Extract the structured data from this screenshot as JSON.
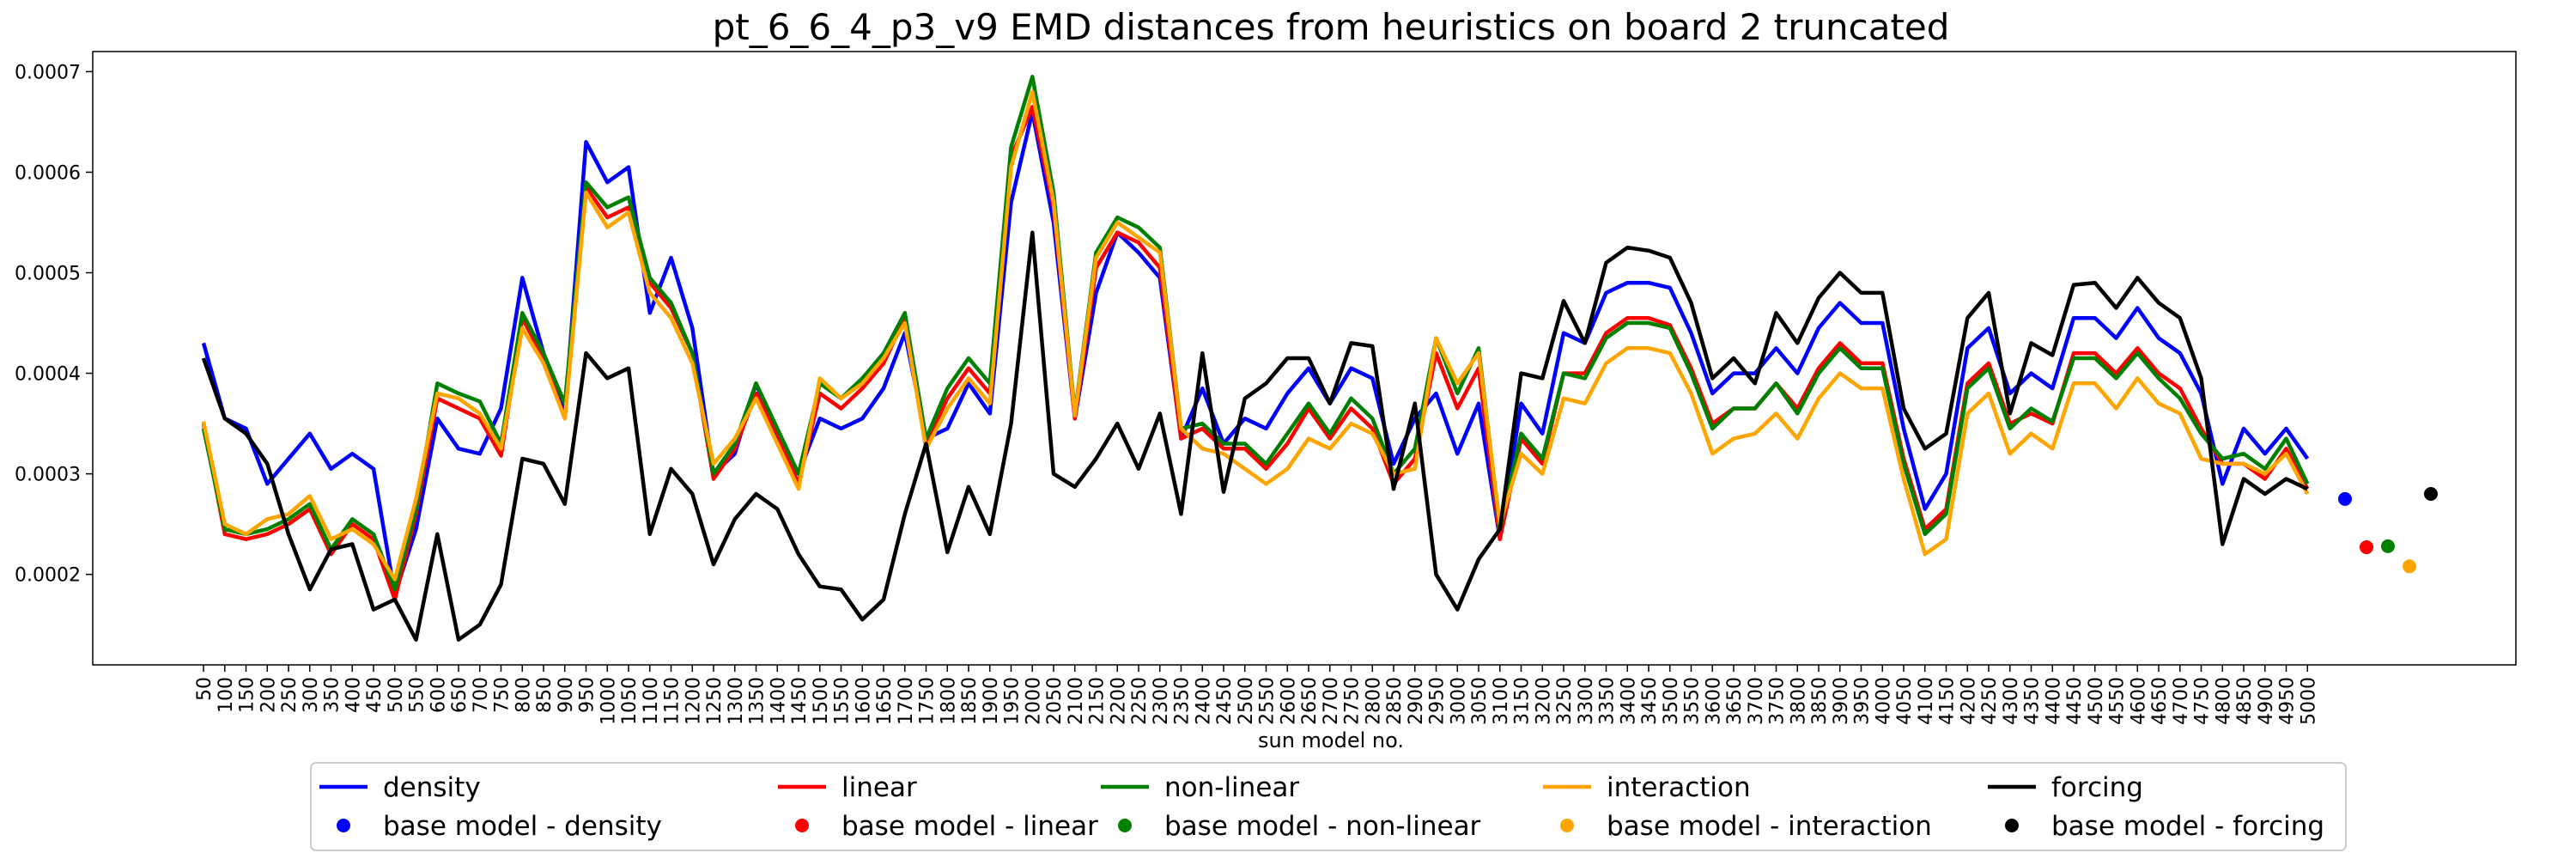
{
  "chart_data": {
    "type": "line",
    "title": "pt_6_6_4_p3_v9 EMD distances from heuristics on board 2 truncated",
    "xlabel": "sun model no.",
    "ylabel": "",
    "ylim": [
      0.00011,
      0.00072
    ],
    "yticks": [
      0.0002,
      0.0003,
      0.0004,
      0.0005,
      0.0006,
      0.0007
    ],
    "ytick_labels": [
      "0.0002",
      "0.0003",
      "0.0004",
      "0.0005",
      "0.0006",
      "0.0007"
    ],
    "x": [
      "50",
      "100",
      "150",
      "200",
      "250",
      "300",
      "350",
      "400",
      "450",
      "500",
      "550",
      "600",
      "650",
      "700",
      "750",
      "800",
      "850",
      "900",
      "950",
      "1000",
      "1050",
      "1100",
      "1150",
      "1200",
      "1250",
      "1300",
      "1350",
      "1400",
      "1450",
      "1500",
      "1550",
      "1600",
      "1650",
      "1700",
      "1750",
      "1800",
      "1850",
      "1900",
      "1950",
      "2000",
      "2050",
      "2100",
      "2150",
      "2200",
      "2250",
      "2300",
      "2350",
      "2400",
      "2450",
      "2500",
      "2550",
      "2600",
      "2650",
      "2700",
      "2750",
      "2800",
      "2850",
      "2900",
      "2950",
      "3000",
      "3050",
      "3100",
      "3150",
      "3200",
      "3250",
      "3300",
      "3350",
      "3400",
      "3450",
      "3500",
      "3550",
      "3600",
      "3650",
      "3700",
      "3750",
      "3800",
      "3850",
      "3900",
      "3950",
      "4000",
      "4050",
      "4100",
      "4150",
      "4200",
      "4250",
      "4300",
      "4350",
      "4400",
      "4450",
      "4500",
      "4550",
      "4600",
      "4650",
      "4700",
      "4750",
      "4800",
      "4850",
      "4900",
      "4950",
      "5000"
    ],
    "series": [
      {
        "name": "density",
        "color": "#0000ff",
        "values": [
          0.00043,
          0.000355,
          0.000345,
          0.00029,
          0.000315,
          0.00034,
          0.000305,
          0.00032,
          0.000305,
          0.00018,
          0.000245,
          0.000355,
          0.000325,
          0.00032,
          0.000365,
          0.000495,
          0.00042,
          0.00036,
          0.00063,
          0.00059,
          0.000605,
          0.00046,
          0.000515,
          0.000445,
          0.0003,
          0.00032,
          0.00039,
          0.000335,
          0.0003,
          0.000355,
          0.000345,
          0.000355,
          0.000385,
          0.00044,
          0.000335,
          0.000345,
          0.00039,
          0.00036,
          0.00057,
          0.00066,
          0.00055,
          0.000355,
          0.00048,
          0.00054,
          0.00052,
          0.000495,
          0.000335,
          0.000385,
          0.00033,
          0.000355,
          0.000345,
          0.00038,
          0.000405,
          0.00037,
          0.000405,
          0.000395,
          0.00031,
          0.000355,
          0.00038,
          0.00032,
          0.00037,
          0.000235,
          0.00037,
          0.00034,
          0.00044,
          0.00043,
          0.00048,
          0.00049,
          0.00049,
          0.000485,
          0.00044,
          0.00038,
          0.0004,
          0.0004,
          0.000425,
          0.0004,
          0.000445,
          0.00047,
          0.00045,
          0.00045,
          0.000345,
          0.000265,
          0.0003,
          0.000425,
          0.000445,
          0.00038,
          0.0004,
          0.000385,
          0.000455,
          0.000455,
          0.000435,
          0.000465,
          0.000435,
          0.00042,
          0.00038,
          0.00029,
          0.000345,
          0.00032,
          0.000345,
          0.000315
        ]
      },
      {
        "name": "linear",
        "color": "#ff0000",
        "values": [
          0.00035,
          0.00024,
          0.000235,
          0.00024,
          0.00025,
          0.000265,
          0.00022,
          0.00025,
          0.000235,
          0.000175,
          0.00026,
          0.000375,
          0.000365,
          0.000355,
          0.000318,
          0.000455,
          0.000415,
          0.000355,
          0.000585,
          0.000555,
          0.000565,
          0.00049,
          0.000465,
          0.00042,
          0.000295,
          0.000325,
          0.00038,
          0.00034,
          0.00029,
          0.00038,
          0.000365,
          0.000385,
          0.00041,
          0.000455,
          0.00033,
          0.000375,
          0.000405,
          0.00038,
          0.000615,
          0.000665,
          0.000565,
          0.000355,
          0.000505,
          0.00054,
          0.00053,
          0.000505,
          0.000335,
          0.000345,
          0.000325,
          0.000325,
          0.000305,
          0.00033,
          0.000365,
          0.000335,
          0.000365,
          0.000345,
          0.00029,
          0.000315,
          0.00042,
          0.000365,
          0.000405,
          0.000235,
          0.000335,
          0.00031,
          0.0004,
          0.0004,
          0.00044,
          0.000455,
          0.000455,
          0.000448,
          0.000405,
          0.00035,
          0.000365,
          0.000365,
          0.00039,
          0.000365,
          0.000405,
          0.00043,
          0.00041,
          0.00041,
          0.000315,
          0.000245,
          0.000265,
          0.00039,
          0.00041,
          0.00035,
          0.00036,
          0.00035,
          0.00042,
          0.00042,
          0.0004,
          0.000425,
          0.0004,
          0.000385,
          0.000345,
          0.00031,
          0.00031,
          0.000295,
          0.000325,
          0.000285
        ]
      },
      {
        "name": "non-linear",
        "color": "#008000",
        "values": [
          0.000345,
          0.000245,
          0.00024,
          0.000245,
          0.000255,
          0.00027,
          0.000225,
          0.000255,
          0.00024,
          0.000185,
          0.000265,
          0.00039,
          0.00038,
          0.000372,
          0.00033,
          0.00046,
          0.00042,
          0.00037,
          0.00059,
          0.000565,
          0.000575,
          0.000495,
          0.00047,
          0.00042,
          0.0003,
          0.00033,
          0.00039,
          0.000345,
          0.0003,
          0.00039,
          0.000375,
          0.000395,
          0.00042,
          0.00046,
          0.000335,
          0.000385,
          0.000415,
          0.00039,
          0.000625,
          0.000695,
          0.00058,
          0.00036,
          0.00052,
          0.000555,
          0.000545,
          0.000525,
          0.000345,
          0.00035,
          0.00033,
          0.00033,
          0.00031,
          0.00034,
          0.00037,
          0.00034,
          0.000375,
          0.000355,
          0.0003,
          0.000325,
          0.000435,
          0.00038,
          0.000425,
          0.000245,
          0.00034,
          0.000315,
          0.0004,
          0.000395,
          0.000435,
          0.00045,
          0.00045,
          0.000445,
          0.0004,
          0.000345,
          0.000365,
          0.000365,
          0.00039,
          0.00036,
          0.0004,
          0.000425,
          0.000405,
          0.000405,
          0.00031,
          0.00024,
          0.00026,
          0.000385,
          0.000405,
          0.000345,
          0.000365,
          0.000352,
          0.000415,
          0.000415,
          0.000395,
          0.00042,
          0.000395,
          0.000375,
          0.00034,
          0.000315,
          0.00032,
          0.000305,
          0.000335,
          0.00029
        ]
      },
      {
        "name": "interaction",
        "color": "#ffa500",
        "values": [
          0.000352,
          0.00025,
          0.00024,
          0.000255,
          0.00026,
          0.000278,
          0.000235,
          0.000245,
          0.00023,
          0.000195,
          0.000275,
          0.00038,
          0.000375,
          0.00036,
          0.000325,
          0.000445,
          0.00041,
          0.000355,
          0.00058,
          0.000545,
          0.00056,
          0.00048,
          0.000455,
          0.00041,
          0.00031,
          0.000335,
          0.000375,
          0.00033,
          0.000285,
          0.000395,
          0.000375,
          0.00039,
          0.000415,
          0.00045,
          0.000325,
          0.000365,
          0.000395,
          0.00037,
          0.000605,
          0.00068,
          0.00057,
          0.000358,
          0.000515,
          0.00055,
          0.000535,
          0.00052,
          0.000345,
          0.000325,
          0.00032,
          0.000305,
          0.00029,
          0.000305,
          0.000335,
          0.000325,
          0.00035,
          0.00034,
          0.0003,
          0.000305,
          0.000435,
          0.00039,
          0.00042,
          0.00025,
          0.00032,
          0.0003,
          0.000375,
          0.00037,
          0.00041,
          0.000425,
          0.000425,
          0.00042,
          0.00038,
          0.00032,
          0.000335,
          0.00034,
          0.00036,
          0.000335,
          0.000375,
          0.0004,
          0.000385,
          0.000385,
          0.000295,
          0.00022,
          0.000235,
          0.00036,
          0.00038,
          0.00032,
          0.00034,
          0.000325,
          0.00039,
          0.00039,
          0.000365,
          0.000395,
          0.00037,
          0.00036,
          0.000315,
          0.00031,
          0.00031,
          0.0003,
          0.00032,
          0.00028
        ]
      },
      {
        "name": "forcing",
        "color": "#000000",
        "values": [
          0.000415,
          0.000355,
          0.00034,
          0.00031,
          0.00024,
          0.000185,
          0.000225,
          0.00023,
          0.000165,
          0.000175,
          0.000135,
          0.00024,
          0.000135,
          0.00015,
          0.00019,
          0.000315,
          0.00031,
          0.00027,
          0.00042,
          0.000395,
          0.000405,
          0.00024,
          0.000305,
          0.00028,
          0.00021,
          0.000255,
          0.00028,
          0.000265,
          0.00022,
          0.000188,
          0.000185,
          0.000155,
          0.000175,
          0.00026,
          0.00033,
          0.000222,
          0.000287,
          0.00024,
          0.00035,
          0.00054,
          0.0003,
          0.000287,
          0.000315,
          0.00035,
          0.000305,
          0.00036,
          0.00026,
          0.00042,
          0.000282,
          0.000375,
          0.00039,
          0.000415,
          0.000415,
          0.00037,
          0.00043,
          0.000427,
          0.000285,
          0.00037,
          0.0002,
          0.000165,
          0.000215,
          0.000245,
          0.0004,
          0.000395,
          0.000472,
          0.00043,
          0.00051,
          0.000525,
          0.000522,
          0.000515,
          0.00047,
          0.000395,
          0.000415,
          0.00039,
          0.00046,
          0.00043,
          0.000475,
          0.0005,
          0.00048,
          0.00048,
          0.000365,
          0.000325,
          0.00034,
          0.000455,
          0.00048,
          0.00036,
          0.00043,
          0.000418,
          0.000488,
          0.00049,
          0.000465,
          0.000495,
          0.00047,
          0.000455,
          0.000395,
          0.00023,
          0.000295,
          0.00028,
          0.000295,
          0.000285
        ]
      }
    ],
    "base_models": [
      {
        "name": "base model - density",
        "color": "#0000ff",
        "value": 0.000275
      },
      {
        "name": "base model - linear",
        "color": "#ff0000",
        "value": 0.000227
      },
      {
        "name": "base model - non-linear",
        "color": "#008000",
        "value": 0.000228
      },
      {
        "name": "base model - interaction",
        "color": "#ffa500",
        "value": 0.000208
      },
      {
        "name": "base model - forcing",
        "color": "#000000",
        "value": 0.00028
      }
    ],
    "legend_placement": "bottom-center",
    "grid": false
  }
}
